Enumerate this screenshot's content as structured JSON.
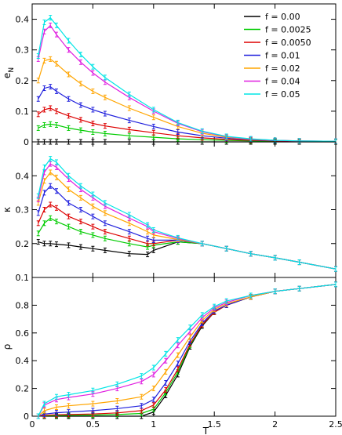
{
  "chart_data": {
    "type": "line",
    "layout": "three vertically stacked panels sharing the x axis",
    "x_label": "T",
    "x_range": [
      0,
      2.5
    ],
    "x_ticks": [
      "0",
      "0.5",
      "1",
      "1.5",
      "2",
      "2.5"
    ],
    "error_bars": true,
    "legend": {
      "placement": "top-right of top panel",
      "entries": [
        {
          "label": "f = 0.00",
          "color": "#000000"
        },
        {
          "label": "f = 0.0025",
          "color": "#00cc00"
        },
        {
          "label": "f = 0.0050",
          "color": "#dd0000"
        },
        {
          "label": "f = 0.01",
          "color": "#2020dd"
        },
        {
          "label": "f = 0.02",
          "color": "#ffa500"
        },
        {
          "label": "f = 0.04",
          "color": "#e020e0"
        },
        {
          "label": "f = 0.05",
          "color": "#00e5e5"
        }
      ]
    },
    "panels": [
      {
        "ylabel_main": "e",
        "ylabel_sub": "N",
        "ylim": [
          0,
          0.45
        ],
        "y_ticks": [
          0,
          0.1,
          0.2,
          0.3,
          0.4
        ],
        "y_tick_labels": [
          "0",
          "0.1",
          "0.2",
          "0.3",
          "0.4"
        ],
        "x": [
          0.05,
          0.1,
          0.15,
          0.2,
          0.3,
          0.4,
          0.5,
          0.6,
          0.8,
          1.0,
          1.2,
          1.4,
          1.6,
          1.8,
          2.0,
          2.2,
          2.5
        ],
        "series": [
          {
            "label": "f = 0.00",
            "values": [
              0.0,
              0.0,
              0.0,
              0.0,
              0.0,
              0.0,
              0.0,
              0.0,
              0.0,
              0.0,
              0.0,
              0.0,
              0.0,
              0.0,
              0.0,
              0.0,
              0.0
            ]
          },
          {
            "label": "f = 0.0025",
            "values": [
              0.045,
              0.055,
              0.058,
              0.055,
              0.045,
              0.038,
              0.032,
              0.027,
              0.02,
              0.015,
              0.01,
              0.007,
              0.005,
              0.003,
              0.002,
              0.002,
              0.001
            ]
          },
          {
            "label": "f = 0.0050",
            "values": [
              0.09,
              0.105,
              0.11,
              0.1,
              0.085,
              0.072,
              0.06,
              0.052,
              0.04,
              0.03,
              0.02,
              0.013,
              0.008,
              0.005,
              0.003,
              0.002,
              0.001
            ]
          },
          {
            "label": "f = 0.01",
            "values": [
              0.14,
              0.175,
              0.18,
              0.165,
              0.14,
              0.12,
              0.105,
              0.092,
              0.07,
              0.05,
              0.032,
              0.02,
              0.012,
              0.007,
              0.004,
              0.003,
              0.002
            ]
          },
          {
            "label": "f = 0.02",
            "values": [
              0.2,
              0.265,
              0.27,
              0.255,
              0.22,
              0.19,
              0.165,
              0.145,
              0.11,
              0.08,
              0.05,
              0.028,
              0.015,
              0.008,
              0.005,
              0.003,
              0.002
            ]
          },
          {
            "label": "f = 0.04",
            "values": [
              0.27,
              0.36,
              0.38,
              0.35,
              0.3,
              0.26,
              0.225,
              0.195,
              0.145,
              0.1,
              0.06,
              0.033,
              0.017,
              0.009,
              0.005,
              0.003,
              0.002
            ]
          },
          {
            "label": "f = 0.05",
            "values": [
              0.28,
              0.39,
              0.405,
              0.38,
              0.33,
              0.285,
              0.245,
              0.21,
              0.155,
              0.105,
              0.063,
              0.035,
              0.018,
              0.01,
              0.005,
              0.003,
              0.002
            ]
          }
        ]
      },
      {
        "ylabel_main": "κ",
        "ylabel_sub": "",
        "ylim": [
          0.1,
          0.5
        ],
        "y_ticks": [
          0.1,
          0.2,
          0.3,
          0.4
        ],
        "y_tick_labels": [
          "0.1",
          "0.2",
          "0.3",
          "0.4"
        ],
        "x": [
          0.05,
          0.1,
          0.15,
          0.2,
          0.3,
          0.4,
          0.5,
          0.6,
          0.8,
          0.95,
          1.0,
          1.2,
          1.4,
          1.6,
          1.8,
          2.0,
          2.2,
          2.5
        ],
        "series": [
          {
            "label": "f = 0.00",
            "values": [
              0.205,
              0.2,
              0.2,
              0.198,
              0.195,
              0.19,
              0.185,
              0.18,
              0.17,
              0.168,
              0.18,
              0.205,
              0.2,
              0.185,
              0.17,
              0.158,
              0.145,
              0.125
            ]
          },
          {
            "label": "f = 0.0025",
            "values": [
              0.23,
              0.26,
              0.275,
              0.265,
              0.25,
              0.235,
              0.225,
              0.215,
              0.2,
              0.19,
              0.195,
              0.205,
              0.2,
              0.185,
              0.17,
              0.158,
              0.145,
              0.125
            ]
          },
          {
            "label": "f = 0.0050",
            "values": [
              0.26,
              0.3,
              0.315,
              0.305,
              0.28,
              0.265,
              0.25,
              0.235,
              0.215,
              0.2,
              0.2,
              0.21,
              0.2,
              0.185,
              0.17,
              0.158,
              0.145,
              0.125
            ]
          },
          {
            "label": "f = 0.01",
            "values": [
              0.29,
              0.35,
              0.37,
              0.355,
              0.32,
              0.3,
              0.28,
              0.26,
              0.235,
              0.215,
              0.21,
              0.21,
              0.2,
              0.185,
              0.17,
              0.158,
              0.145,
              0.125
            ]
          },
          {
            "label": "f = 0.02",
            "values": [
              0.32,
              0.385,
              0.41,
              0.395,
              0.36,
              0.335,
              0.31,
              0.29,
              0.26,
              0.235,
              0.225,
              0.212,
              0.2,
              0.185,
              0.17,
              0.158,
              0.145,
              0.125
            ]
          },
          {
            "label": "f = 0.04",
            "values": [
              0.33,
              0.41,
              0.435,
              0.425,
              0.39,
              0.36,
              0.335,
              0.31,
              0.275,
              0.25,
              0.235,
              0.215,
              0.2,
              0.185,
              0.17,
              0.158,
              0.145,
              0.125
            ]
          },
          {
            "label": "f = 0.05",
            "values": [
              0.34,
              0.425,
              0.45,
              0.44,
              0.4,
              0.37,
              0.345,
              0.32,
              0.285,
              0.255,
              0.24,
              0.217,
              0.2,
              0.185,
              0.17,
              0.158,
              0.145,
              0.125
            ]
          }
        ]
      },
      {
        "ylabel_main": "ρ",
        "ylabel_sub": "",
        "ylim": [
          0,
          1
        ],
        "y_ticks": [
          0,
          0.2,
          0.4,
          0.6,
          0.8
        ],
        "y_tick_labels": [
          "0",
          "0.2",
          "0.4",
          "0.6",
          "0.8"
        ],
        "x": [
          0.05,
          0.1,
          0.2,
          0.3,
          0.5,
          0.7,
          0.9,
          1.0,
          1.1,
          1.2,
          1.3,
          1.4,
          1.5,
          1.6,
          1.8,
          2.0,
          2.2,
          2.5
        ],
        "series": [
          {
            "label": "f = 0.00",
            "values": [
              0.0,
              0.0,
              0.0,
              0.0,
              0.0,
              0.0,
              0.0,
              0.03,
              0.15,
              0.3,
              0.5,
              0.65,
              0.75,
              0.8,
              0.86,
              0.9,
              0.92,
              0.95
            ]
          },
          {
            "label": "f = 0.0025",
            "values": [
              0.0,
              0.003,
              0.005,
              0.006,
              0.008,
              0.012,
              0.02,
              0.05,
              0.17,
              0.32,
              0.51,
              0.66,
              0.75,
              0.8,
              0.86,
              0.9,
              0.92,
              0.95
            ]
          },
          {
            "label": "f = 0.0050",
            "values": [
              0.0,
              0.006,
              0.01,
              0.012,
              0.016,
              0.024,
              0.04,
              0.08,
              0.19,
              0.34,
              0.52,
              0.66,
              0.75,
              0.8,
              0.86,
              0.9,
              0.92,
              0.95
            ]
          },
          {
            "label": "f = 0.01",
            "values": [
              0.0,
              0.015,
              0.025,
              0.03,
              0.04,
              0.055,
              0.075,
              0.12,
              0.24,
              0.38,
              0.54,
              0.67,
              0.76,
              0.8,
              0.86,
              0.9,
              0.92,
              0.95
            ]
          },
          {
            "label": "f = 0.02",
            "values": [
              0.0,
              0.04,
              0.065,
              0.075,
              0.09,
              0.11,
              0.14,
              0.2,
              0.32,
              0.44,
              0.57,
              0.69,
              0.77,
              0.81,
              0.86,
              0.9,
              0.92,
              0.95
            ]
          },
          {
            "label": "f = 0.04",
            "values": [
              0.0,
              0.08,
              0.12,
              0.135,
              0.16,
              0.2,
              0.25,
              0.3,
              0.4,
              0.51,
              0.61,
              0.71,
              0.78,
              0.82,
              0.87,
              0.9,
              0.92,
              0.95
            ]
          },
          {
            "label": "f = 0.05",
            "values": [
              0.0,
              0.09,
              0.14,
              0.155,
              0.185,
              0.23,
              0.29,
              0.35,
              0.45,
              0.55,
              0.64,
              0.73,
              0.79,
              0.83,
              0.87,
              0.9,
              0.92,
              0.95
            ]
          }
        ]
      }
    ]
  }
}
